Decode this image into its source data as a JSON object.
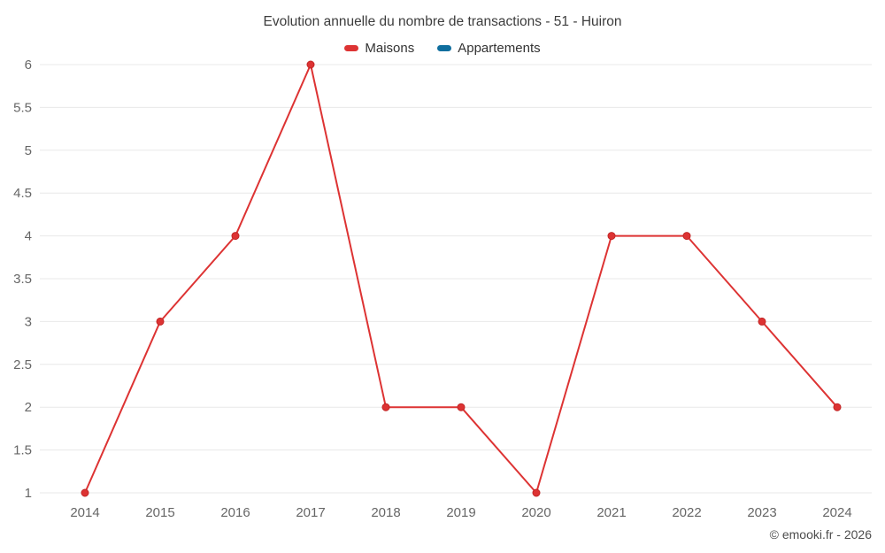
{
  "header": {
    "title": "Evolution annuelle du nombre de transactions - 51 - Huiron"
  },
  "footer": {
    "copyright": "© emooki.fr - 2026"
  },
  "colors": {
    "maisons": "#dd3333",
    "maisons_point_stroke": "#c22626",
    "appartements": "#0f6e9e",
    "grid": "#e8e8e8",
    "tick_label": "#666666",
    "title": "#3c3c3c"
  },
  "chart_data": {
    "type": "line",
    "title": "Evolution annuelle du nombre de transactions - 51 - Huiron",
    "categories": [
      "2014",
      "2015",
      "2016",
      "2017",
      "2018",
      "2019",
      "2020",
      "2021",
      "2022",
      "2023",
      "2024"
    ],
    "series": [
      {
        "name": "Maisons",
        "color": "#dd3333",
        "values": [
          1,
          3,
          4,
          6,
          2,
          2,
          1,
          4,
          4,
          3,
          2
        ]
      },
      {
        "name": "Appartements",
        "color": "#0f6e9e",
        "values": []
      }
    ],
    "xlabel": "",
    "ylabel": "",
    "ylim": [
      1,
      6
    ],
    "ytick_step": 0.5,
    "grid": "horizontal",
    "legend_position": "top"
  }
}
